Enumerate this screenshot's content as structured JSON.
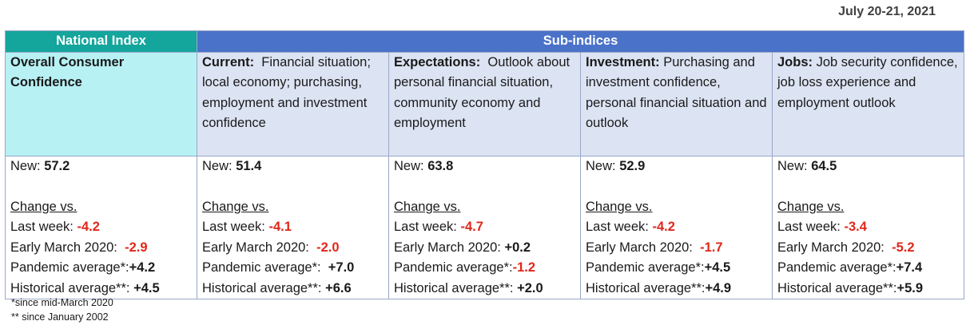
{
  "date": "July 20-21, 2021",
  "header": {
    "national": "National Index",
    "sub": "Sub-indices"
  },
  "columns": [
    {
      "title": "Overall Consumer Confidence",
      "desc": "",
      "new_label": "New:",
      "new_value": "57.2",
      "change_label": "Change vs.",
      "last_week_label": "Last week:",
      "last_week": "-4.2",
      "early_march_label": "Early March 2020:",
      "early_march": "-2.9",
      "pandemic_label": "Pandemic average*:",
      "pandemic": "+4.2",
      "historical_label": "Historical average**:",
      "historical": "+4.5"
    },
    {
      "title": "Current:",
      "desc": "Financial situation; local economy; purchasing, employment and investment confidence",
      "new_label": "New:",
      "new_value": "51.4",
      "change_label": "Change vs.",
      "last_week_label": "Last week:",
      "last_week": "-4.1",
      "early_march_label": "Early March 2020:",
      "early_march": "-2.0",
      "pandemic_label": "Pandemic average*:",
      "pandemic": "+7.0",
      "historical_label": "Historical average**:",
      "historical": "+6.6"
    },
    {
      "title": "Expectations:",
      "desc": "Outlook about personal financial situation, community economy and employment",
      "new_label": "New:",
      "new_value": "63.8",
      "change_label": "Change vs.",
      "last_week_label": "Last week:",
      "last_week": "-4.7",
      "early_march_label": "Early March 2020:",
      "early_march": "+0.2",
      "pandemic_label": "Pandemic average*:",
      "pandemic": "-1.2",
      "historical_label": "Historical average**:",
      "historical": "+2.0"
    },
    {
      "title": "Investment:",
      "desc": "Purchasing and investment confidence, personal financial situation and outlook",
      "new_label": "New:",
      "new_value": "52.9",
      "change_label": "Change vs.",
      "last_week_label": "Last week:",
      "last_week": "-4.2",
      "early_march_label": "Early March 2020:",
      "early_march": "-1.7",
      "pandemic_label": "Pandemic average*:",
      "pandemic": "+4.5",
      "historical_label": "Historical average**:",
      "historical": "+4.9"
    },
    {
      "title": "Jobs:",
      "desc": "Job security confidence, job loss experience and employment outlook",
      "new_label": "New:",
      "new_value": "64.5",
      "change_label": "Change vs.",
      "last_week_label": "Last week:",
      "last_week": "-3.4",
      "early_march_label": "Early March 2020:",
      "early_march": "-5.2",
      "pandemic_label": "Pandemic average*:",
      "pandemic": "+7.4",
      "historical_label": "Historical average**:",
      "historical": "+5.9"
    }
  ],
  "footnotes": {
    "pandemic": "*since mid-March 2020",
    "historical": "** since January 2002"
  }
}
